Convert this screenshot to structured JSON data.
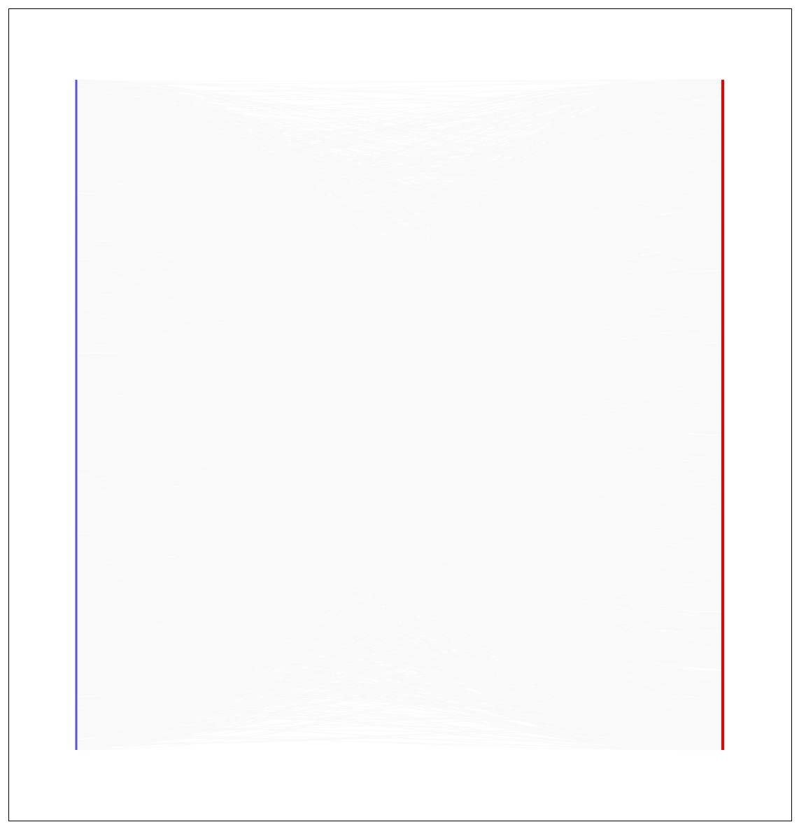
{
  "chart_data": {
    "type": "bipartite-edge-bundle",
    "title": "",
    "xlabel": "",
    "ylabel": "",
    "left_axis": {
      "color": "#5555dd"
    },
    "right_axis": {
      "color": "#ee0000"
    },
    "edges": {
      "color": "#000000",
      "opacity": 0.025
    },
    "frame": {
      "color": "#000000"
    },
    "edge_pattern": {
      "random_edge_count": 2400,
      "cross_bundle_edge_count": 1800,
      "right_hubs": [
        0.0,
        0.14,
        0.3,
        0.44,
        0.62,
        0.71,
        0.86,
        0.96,
        1.0
      ]
    }
  }
}
